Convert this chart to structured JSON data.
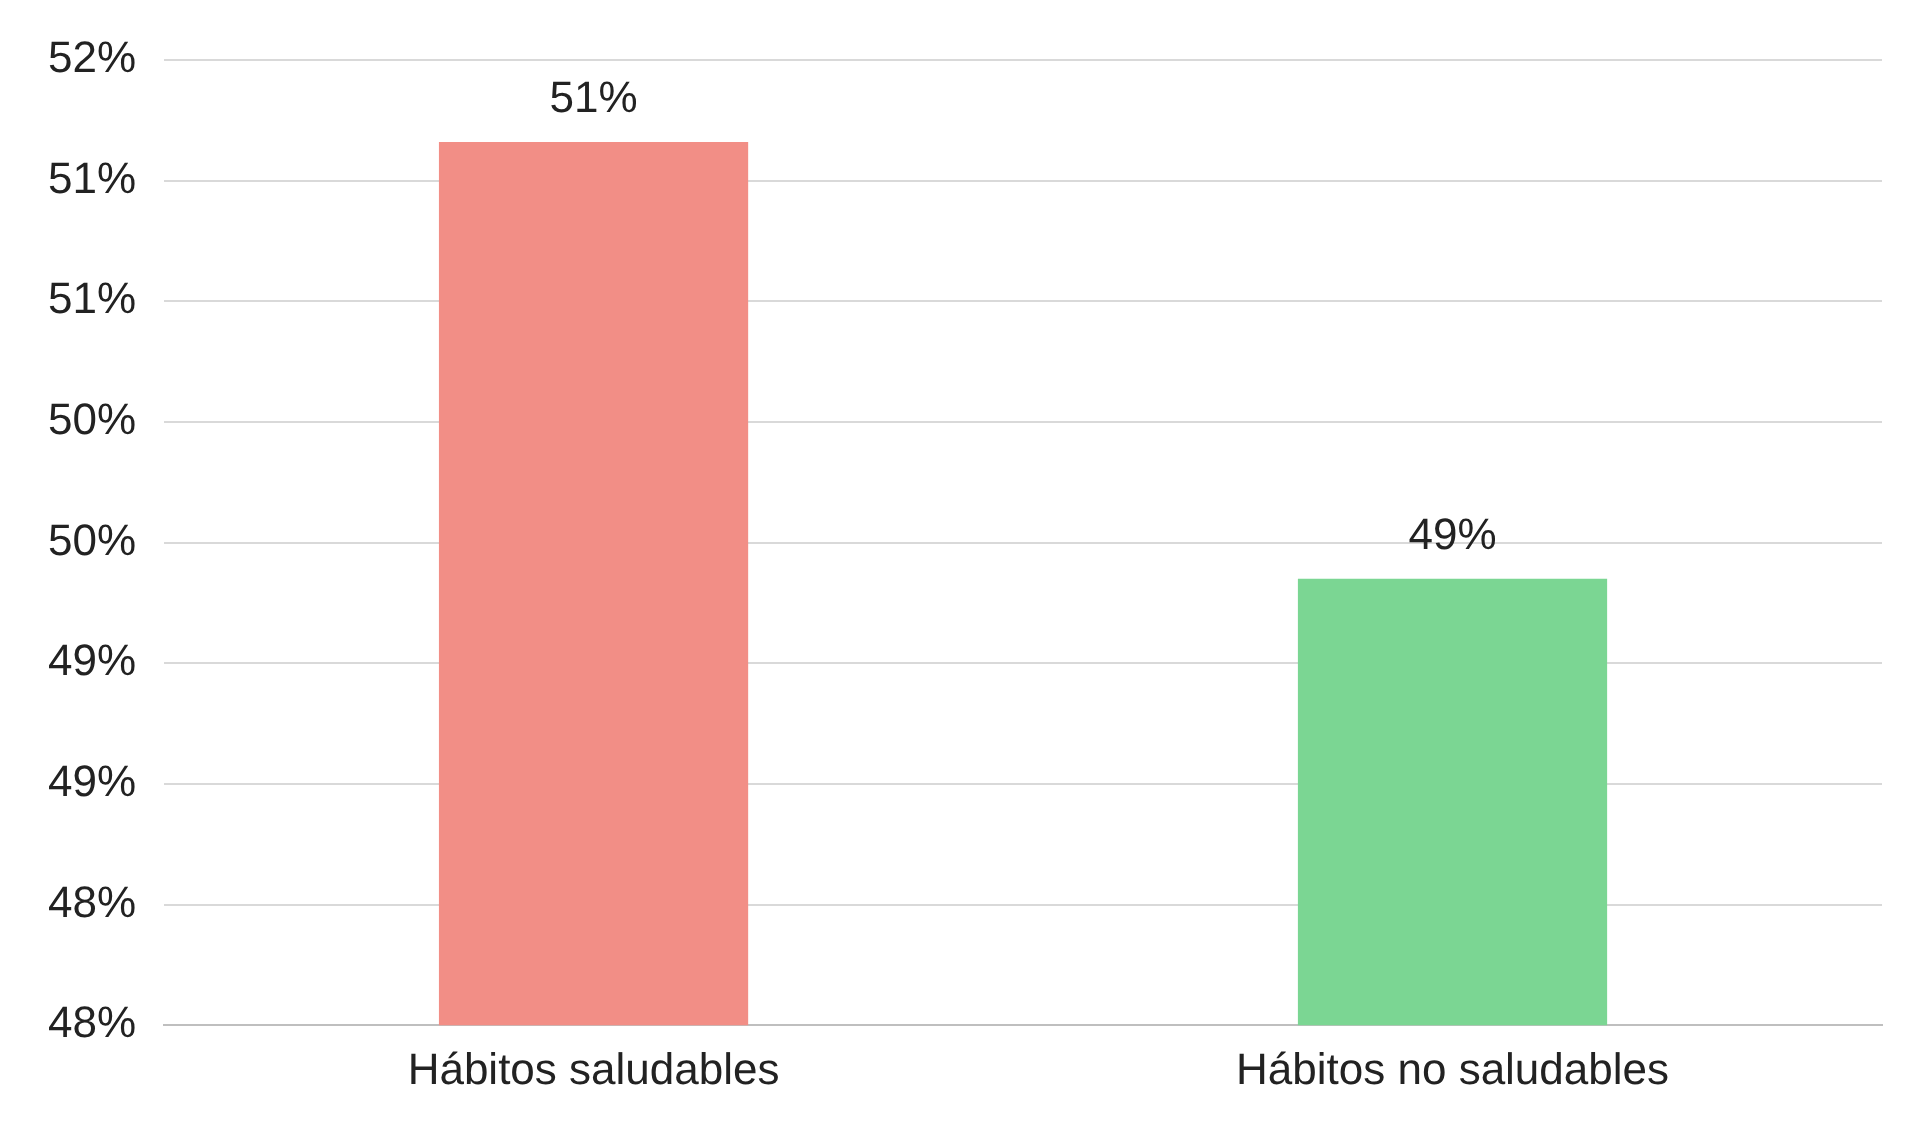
{
  "chart_data": {
    "type": "bar",
    "categories": [
      "Hábitos saludables",
      "Hábitos no saludables"
    ],
    "values": [
      51.26,
      49.45
    ],
    "colors": [
      "#f28e86",
      "#7bd693"
    ],
    "value_labels": [
      "51%",
      "49%"
    ],
    "ylim": [
      47.6,
      51.6
    ],
    "yticks": [
      {
        "value": 47.6,
        "label": "48%"
      },
      {
        "value": 48.1,
        "label": "48%"
      },
      {
        "value": 48.6,
        "label": "49%"
      },
      {
        "value": 49.1,
        "label": "49%"
      },
      {
        "value": 49.6,
        "label": "50%"
      },
      {
        "value": 50.1,
        "label": "50%"
      },
      {
        "value": 50.6,
        "label": "51%"
      },
      {
        "value": 51.1,
        "label": "51%"
      },
      {
        "value": 51.6,
        "label": "52%"
      }
    ],
    "grid": "y",
    "legend": false
  }
}
